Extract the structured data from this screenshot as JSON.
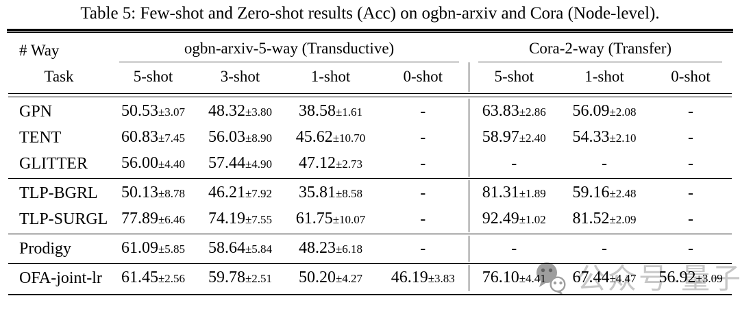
{
  "title": "Table 5: Few-shot and Zero-shot results (Acc) on ogbn-arxiv and Cora (Node-level).",
  "table": {
    "corner": {
      "top": "# Way",
      "bottom": "Task"
    },
    "plus_minus": "±",
    "dash": "-",
    "groups": [
      {
        "label": "ogbn-arxiv-5-way (Transductive)",
        "cols": [
          "5-shot",
          "3-shot",
          "1-shot",
          "0-shot"
        ]
      },
      {
        "label": "Cora-2-way (Transfer)",
        "cols": [
          "5-shot",
          "1-shot",
          "0-shot"
        ]
      }
    ],
    "row_groups": [
      {
        "rows": [
          {
            "task": "GPN",
            "values": [
              [
                "50.53",
                "3.07"
              ],
              [
                "48.32",
                "3.80"
              ],
              [
                "38.58",
                "1.61"
              ],
              "-",
              [
                "63.83",
                "2.86"
              ],
              [
                "56.09",
                "2.08"
              ],
              "-"
            ]
          },
          {
            "task": "TENT",
            "values": [
              [
                "60.83",
                "7.45"
              ],
              [
                "56.03",
                "8.90"
              ],
              [
                "45.62",
                "10.70"
              ],
              "-",
              [
                "58.97",
                "2.40"
              ],
              [
                "54.33",
                "2.10"
              ],
              "-"
            ]
          },
          {
            "task": "GLITTER",
            "values": [
              [
                "56.00",
                "4.40"
              ],
              [
                "57.44",
                "4.90"
              ],
              [
                "47.12",
                "2.73"
              ],
              "-",
              "-",
              "-",
              "-"
            ]
          }
        ]
      },
      {
        "rows": [
          {
            "task": "TLP-BGRL",
            "values": [
              [
                "50.13",
                "8.78"
              ],
              [
                "46.21",
                "7.92"
              ],
              [
                "35.81",
                "8.58"
              ],
              "-",
              [
                "81.31",
                "1.89"
              ],
              [
                "59.16",
                "2.48"
              ],
              "-"
            ]
          },
          {
            "task": "TLP-SURGL",
            "values": [
              [
                "77.89",
                "6.46"
              ],
              [
                "74.19",
                "7.55"
              ],
              [
                "61.75",
                "10.07"
              ],
              "-",
              [
                "92.49",
                "1.02"
              ],
              [
                "81.52",
                "2.09"
              ],
              "-"
            ]
          }
        ]
      },
      {
        "rows": [
          {
            "task": "Prodigy",
            "values": [
              [
                "61.09",
                "5.85"
              ],
              [
                "58.64",
                "5.84"
              ],
              [
                "48.23",
                "6.18"
              ],
              "-",
              "-",
              "-",
              "-"
            ]
          }
        ]
      },
      {
        "rows": [
          {
            "task": "OFA-joint-lr",
            "values": [
              [
                "61.45",
                "2.56"
              ],
              [
                "59.78",
                "2.51"
              ],
              [
                "50.20",
                "4.27"
              ],
              [
                "46.19",
                "3.83"
              ],
              [
                "76.10",
                "4.41"
              ],
              [
                "67.44",
                "4.47"
              ],
              [
                "56.92",
                "3.09"
              ]
            ]
          }
        ]
      }
    ]
  },
  "watermark": {
    "icon": "wechat-icon",
    "text": "公众号·量子位",
    "text_color": "#c7c7c7",
    "icon_color": "#9e9e9e"
  }
}
